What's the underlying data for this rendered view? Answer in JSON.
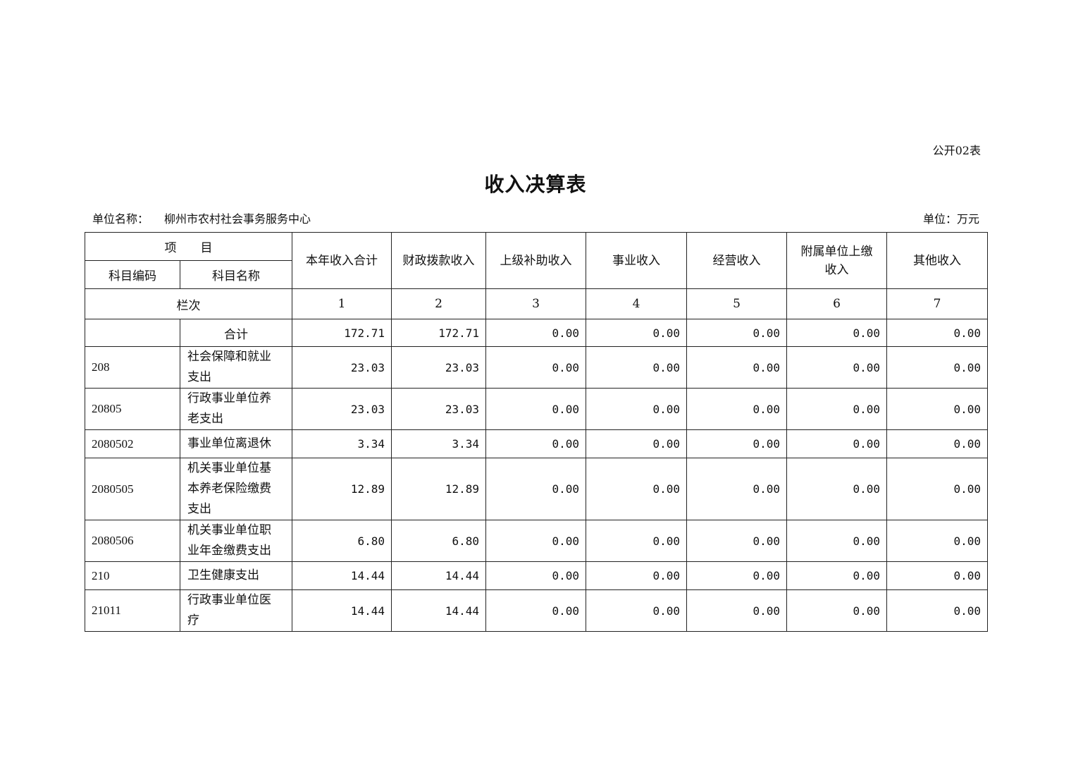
{
  "form_no": "公开02表",
  "title": "收入决算表",
  "unit_name_label": "单位名称：",
  "unit_name": "柳州市农村社会事务服务中心",
  "unit": "单位：万元",
  "table": {
    "header": {
      "item": "项　　目",
      "code": "科目编码",
      "name": "科目名称",
      "columns": [
        "本年收入合计",
        "财政拨款收入",
        "上级补助收入",
        "事业收入",
        "经营收入",
        "附属单位上缴收入",
        "其他收入"
      ],
      "column_row_label": "栏次",
      "column_numbers": [
        "1",
        "2",
        "3",
        "4",
        "5",
        "6",
        "7"
      ]
    },
    "total": {
      "label": "合计",
      "values": [
        "172.71",
        "172.71",
        "0.00",
        "0.00",
        "0.00",
        "0.00",
        "0.00"
      ]
    },
    "rows": [
      {
        "code": "208",
        "name": "社会保障和就业支出",
        "values": [
          "23.03",
          "23.03",
          "0.00",
          "0.00",
          "0.00",
          "0.00",
          "0.00"
        ]
      },
      {
        "code": "20805",
        "name": "行政事业单位养老支出",
        "values": [
          "23.03",
          "23.03",
          "0.00",
          "0.00",
          "0.00",
          "0.00",
          "0.00"
        ]
      },
      {
        "code": "2080502",
        "name": "事业单位离退休",
        "values": [
          "3.34",
          "3.34",
          "0.00",
          "0.00",
          "0.00",
          "0.00",
          "0.00"
        ]
      },
      {
        "code": "2080505",
        "name": "机关事业单位基本养老保险缴费支出",
        "values": [
          "12.89",
          "12.89",
          "0.00",
          "0.00",
          "0.00",
          "0.00",
          "0.00"
        ]
      },
      {
        "code": "2080506",
        "name": "机关事业单位职业年金缴费支出",
        "values": [
          "6.80",
          "6.80",
          "0.00",
          "0.00",
          "0.00",
          "0.00",
          "0.00"
        ]
      },
      {
        "code": "210",
        "name": "卫生健康支出",
        "values": [
          "14.44",
          "14.44",
          "0.00",
          "0.00",
          "0.00",
          "0.00",
          "0.00"
        ]
      },
      {
        "code": "21011",
        "name": "行政事业单位医疗",
        "values": [
          "14.44",
          "14.44",
          "0.00",
          "0.00",
          "0.00",
          "0.00",
          "0.00"
        ]
      }
    ]
  }
}
